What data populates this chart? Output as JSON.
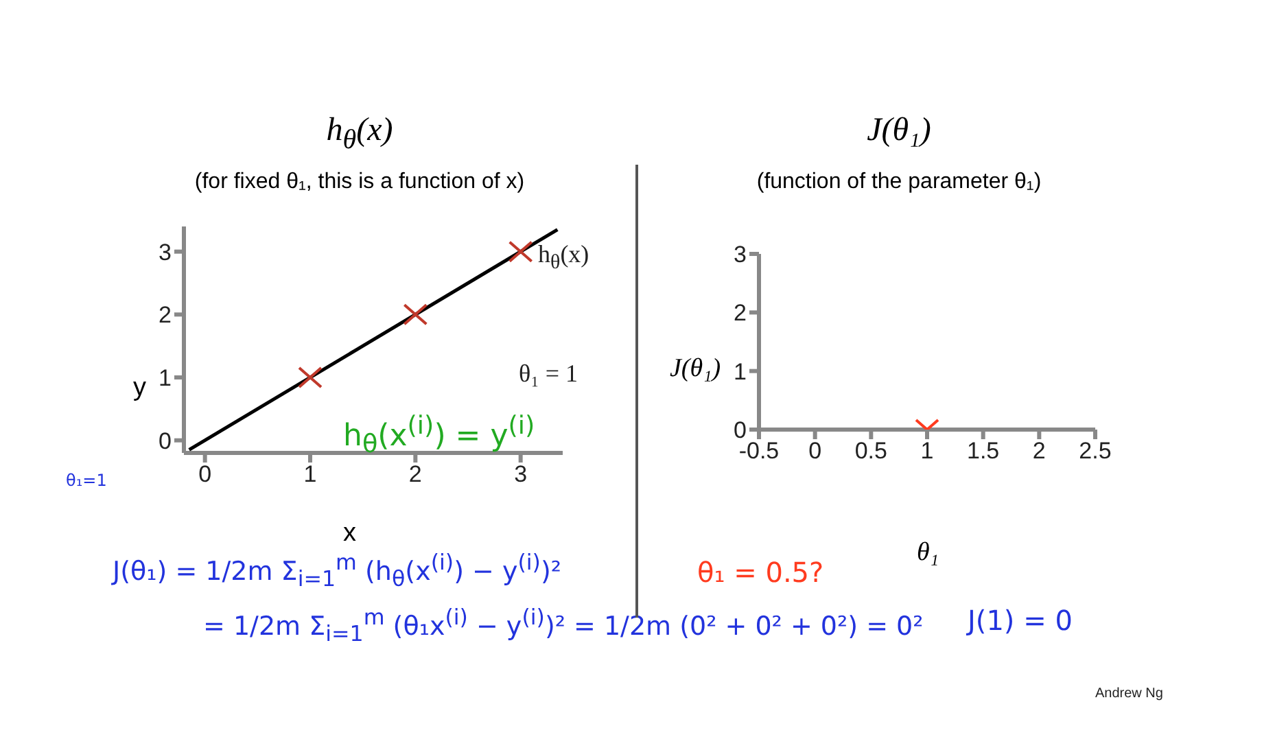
{
  "chart_data": [
    {
      "type": "scatter",
      "title": "h$_{θ}$(x)",
      "subtitle": "(for fixed θ₁, this is a function of x)",
      "xlabel": "x",
      "ylabel": "y",
      "xlim": [
        -0.2,
        3.4
      ],
      "ylim": [
        -0.2,
        3.4
      ],
      "xticks": [
        0,
        1,
        2,
        3
      ],
      "yticks": [
        0,
        1,
        2,
        3
      ],
      "grid": false,
      "legend": false,
      "series": [
        {
          "type": "line",
          "color": "#000000",
          "x": [
            -0.15,
            3.35
          ],
          "values": [
            -0.15,
            3.35
          ],
          "marker": "none",
          "line_style": "solid"
        },
        {
          "type": "scatter",
          "color": "#c0392b",
          "x": [
            1,
            2,
            3
          ],
          "values": [
            1,
            2,
            3
          ],
          "marker": "cross"
        }
      ],
      "annotations": [
        "h$_{θ}$(x)",
        "θ₁ = 1",
        "h$_{θ}$(x$^{(i)}$) = y$^{(i)}$",
        "θ₁=1",
        "J(θ₁) = 1/2m Σ$_{i=1}$$^{m}$ (h$_{θ}$(x$^{(i)}$) − y$^{(i)}$)²",
        "= 1/2m Σ$_{i=1}$$^{m}$ (θ₁x$^{(i)}$ − y$^{(i)}$)² = 1/2m (0² + 0² + 0²) = 0²"
      ]
    },
    {
      "type": "scatter",
      "title": "J(θ₁)",
      "subtitle": "(function of the parameter θ₁)",
      "xlabel": "θ₁",
      "ylabel": "J(θ₁)",
      "xlim": [
        -0.5,
        2.5
      ],
      "ylim": [
        0,
        3
      ],
      "xticks": [
        -0.5,
        0,
        0.5,
        1,
        1.5,
        2,
        2.5
      ],
      "yticks": [
        0,
        1,
        2,
        3
      ],
      "grid": false,
      "legend": false,
      "series": [
        {
          "type": "scatter",
          "color": "#ff3b1f",
          "x": [
            1
          ],
          "values": [
            0
          ],
          "marker": "cross"
        }
      ],
      "annotations": [
        "θ₁ = 0.5?",
        "J(1) = 0",
        "Andrew Ng"
      ]
    }
  ]
}
